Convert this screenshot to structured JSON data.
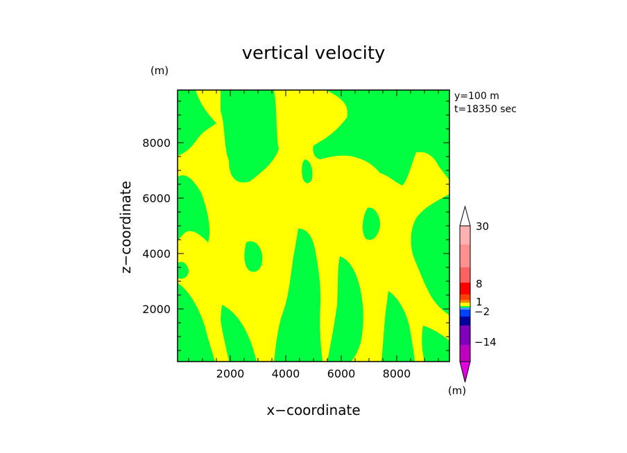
{
  "chart_data": {
    "type": "heatmap",
    "title": "vertical velocity",
    "xlabel": "x−coordinate",
    "ylabel": "z−coordinate",
    "y_unit": "(m)",
    "colorbar_unit": "(m)",
    "annotation_y": "y=100  m",
    "annotation_t": "t=18350 sec",
    "xlim": [
      100,
      9900
    ],
    "ylim": [
      100,
      9900
    ],
    "x_ticks": [
      "2000",
      "4000",
      "6000",
      "8000"
    ],
    "y_ticks": [
      "2000",
      "4000",
      "6000",
      "8000"
    ],
    "x_tick_values": [
      2000,
      4000,
      6000,
      8000
    ],
    "y_tick_values": [
      2000,
      4000,
      6000,
      8000
    ],
    "colorbar_labels": [
      "30",
      "8",
      "1",
      "−2",
      "−14"
    ],
    "colorbar_label_values": [
      30,
      8,
      1,
      -2,
      -14
    ],
    "field_colors": {
      "positive": "#ffff00",
      "negative": "#00ff40"
    },
    "colorbar_colors": [
      "#c000c0",
      "#8000c0",
      "#0000a0",
      "#0040ff",
      "#40a0ff",
      "#00ff40",
      "#ffff00",
      "#ff8000",
      "#ff4000",
      "#ff0000",
      "#ff6060",
      "#ff9090",
      "#ffb0b0"
    ]
  }
}
